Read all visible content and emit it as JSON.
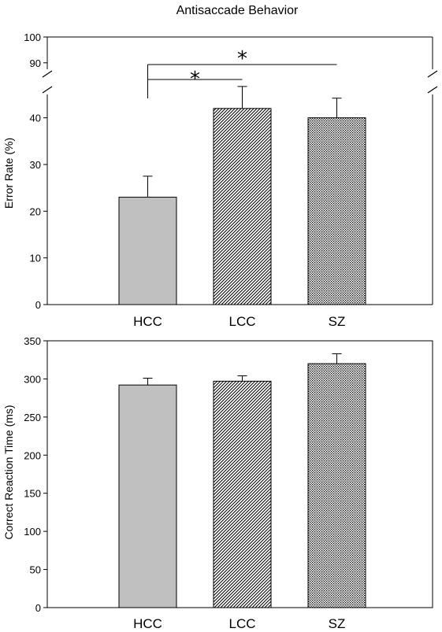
{
  "figure": {
    "title": "Antisaccade Behavior"
  },
  "chart_data": [
    {
      "type": "bar",
      "categories": [
        "HCC",
        "LCC",
        "SZ"
      ],
      "values": [
        23,
        42,
        40
      ],
      "errors": [
        4.5,
        4.7,
        4.2
      ],
      "ylabel": "Error Rate (%)",
      "xlabel": "",
      "ylim": [
        0,
        100
      ],
      "axis_break": [
        45,
        88
      ],
      "yticks": [
        "0",
        "10",
        "20",
        "30",
        "40",
        "90",
        "100"
      ],
      "fills": [
        "solid-gray",
        "diagonal-hatch",
        "crosshatch"
      ],
      "bar_color": "#c0c0c0",
      "significance": [
        {
          "from": "HCC",
          "to": "LCC",
          "label": "*"
        },
        {
          "from": "HCC",
          "to": "SZ",
          "label": "*"
        }
      ],
      "grid": false
    },
    {
      "type": "bar",
      "categories": [
        "HCC",
        "LCC",
        "SZ"
      ],
      "values": [
        292,
        297,
        320
      ],
      "errors": [
        9,
        7,
        13
      ],
      "ylabel": "Correct Reaction Time (ms)",
      "xlabel": "",
      "ylim": [
        0,
        350
      ],
      "yticks": [
        "0",
        "50",
        "100",
        "150",
        "200",
        "250",
        "300",
        "350"
      ],
      "fills": [
        "solid-gray",
        "diagonal-hatch",
        "crosshatch"
      ],
      "bar_color": "#c0c0c0",
      "grid": false
    }
  ]
}
